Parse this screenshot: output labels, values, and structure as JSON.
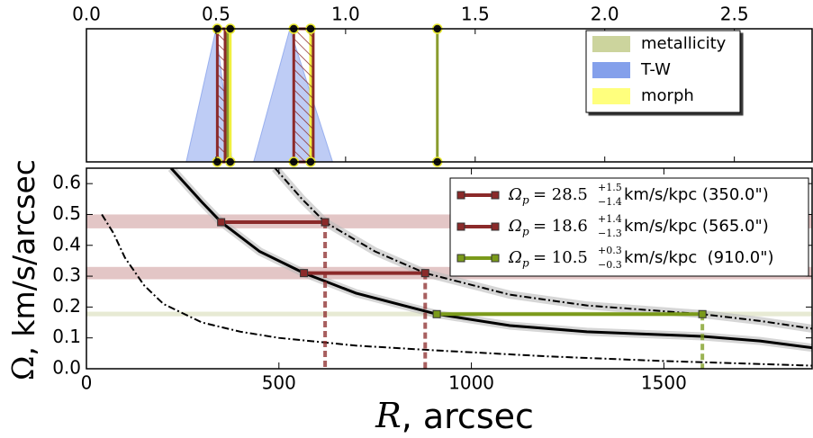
{
  "chart_data": [
    {
      "type": "marker-strip",
      "xlim": [
        0,
        2.8
      ],
      "xticks": [
        {
          "value": 0,
          "label": "0.0"
        },
        0.5,
        {
          "value": 1,
          "label": "1.0"
        },
        1.5,
        {
          "value": 2,
          "label": "2.0"
        },
        2.5
      ],
      "ylim": [
        0,
        1
      ],
      "triangles": {
        "name": "T-W",
        "color": "#6f8fe8",
        "lower": [
          0.385,
          0.645
        ],
        "peak": [
          0.5,
          0.785
        ],
        "upper": [
          0.5625,
          0.95
        ]
      },
      "lines": [
        {
          "name": "metallicity",
          "color": "#c3cc8c",
          "line_color": "#8a9c2e",
          "values": [
            0.545,
            1.354
          ]
        },
        {
          "name": "morph",
          "color": "#ffff66",
          "line_color": "#f0f040",
          "values": [
            0.555,
            0.865
          ]
        }
      ],
      "intervals": {
        "color": "#8b2a2a",
        "start": [
          0.505,
          0.8
        ],
        "end": [
          0.535,
          0.875
        ]
      },
      "dots": [
        0.505,
        0.555,
        0.8,
        0.865,
        1.354
      ],
      "legend": "upper right"
    },
    {
      "type": "line",
      "xlim": [
        0,
        1885
      ],
      "xticks": [
        0,
        500,
        1000,
        1500
      ],
      "ylim": [
        0,
        0.65
      ],
      "yticks": [
        {
          "value": 0,
          "label": "0.0"
        },
        0.1,
        0.2,
        0.3,
        0.4,
        0.5,
        0.6
      ],
      "xlabel_symbol": "R",
      "xlabel": ", arcsec",
      "ylabel_symbol": "Ω",
      "ylabel": ", km/s/arcsec",
      "curves": [
        {
          "style": "solid",
          "x": [
            220,
            300,
            350,
            450,
            565,
            700,
            910,
            1100,
            1300,
            1500,
            1600,
            1750,
            1885
          ],
          "values": [
            0.65,
            0.54,
            0.475,
            0.38,
            0.31,
            0.245,
            0.177,
            0.14,
            0.12,
            0.11,
            0.105,
            0.09,
            0.068
          ]
        },
        {
          "style": "dashdot",
          "x": [
            490,
            560,
            620,
            750,
            880,
            1100,
            1300,
            1600,
            1750,
            1885
          ],
          "values": [
            0.65,
            0.55,
            0.475,
            0.38,
            0.31,
            0.24,
            0.205,
            0.177,
            0.155,
            0.13
          ]
        },
        {
          "style": "dashdot",
          "x": [
            40,
            70,
            100,
            150,
            200,
            300,
            400,
            500,
            700,
            900,
            1200,
            1500,
            1885
          ],
          "values": [
            0.5,
            0.44,
            0.36,
            0.27,
            0.21,
            0.15,
            0.12,
            0.1,
            0.075,
            0.06,
            0.04,
            0.025,
            0.01
          ]
        }
      ],
      "series": [
        {
          "name_parts": [
            "Ω",
            "p",
            "= 28.5",
            "+1.5",
            "−1.4",
            "km/s/kpc (350.0\")"
          ],
          "color": "#8b2a2a",
          "band_color": "#d9b3b3",
          "start": 350,
          "end": 620,
          "value": 0.475,
          "band": [
            0.455,
            0.5
          ]
        },
        {
          "name_parts": [
            "Ω",
            "p",
            "= 18.6",
            "+1.4",
            "−1.3",
            "km/s/kpc (565.0\")"
          ],
          "color": "#8b2a2a",
          "band_color": "#d9b3b3",
          "start": 565,
          "end": 880,
          "value": 0.31,
          "band": [
            0.29,
            0.33
          ]
        },
        {
          "name_parts": [
            "Ω",
            "p",
            "= 10.5",
            "+0.3",
            "−0.3",
            "km/s/kpc  (910.0\")"
          ],
          "color": "#7a9a1a",
          "band_color": "#dfe3c6",
          "start": 910,
          "end": 1600,
          "value": 0.177,
          "band": [
            0.17,
            0.185
          ]
        }
      ],
      "legend": "upper right"
    }
  ]
}
